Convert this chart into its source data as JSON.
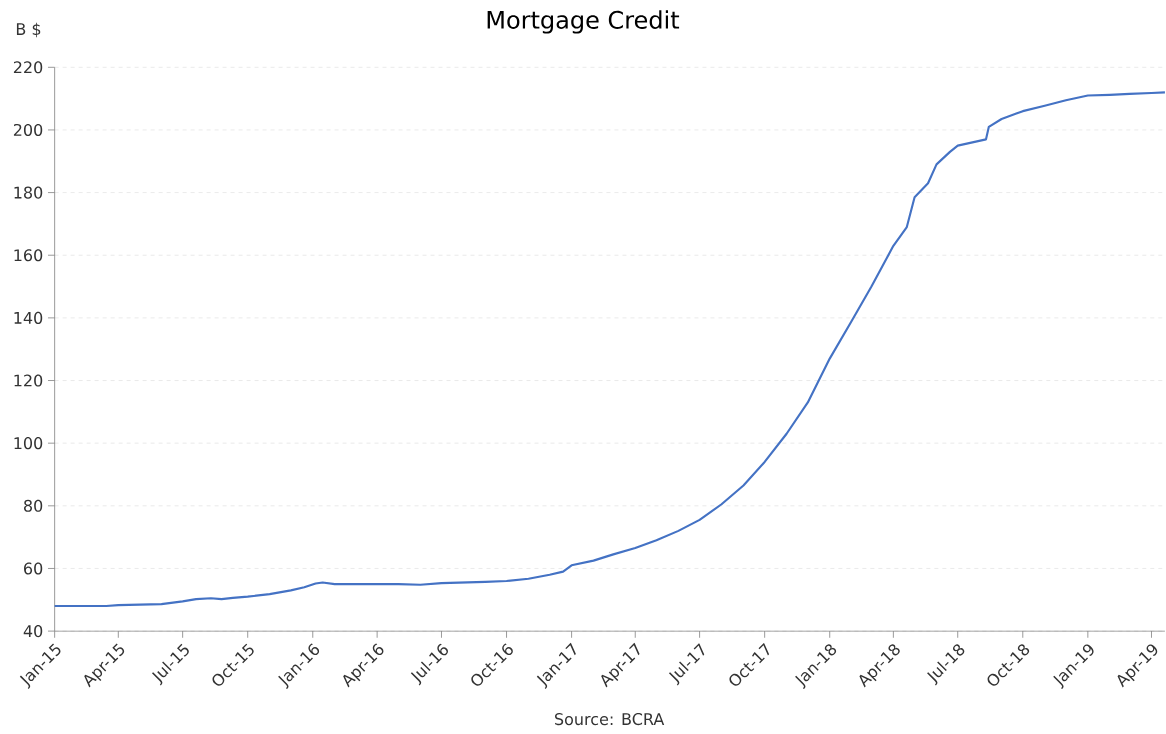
{
  "chart_data": {
    "type": "line",
    "title": "Mortgage Credit",
    "ylabel": "B $",
    "annotations": [
      "Source: BCRA"
    ],
    "x": [
      "2015-01-01",
      "2015-03-15",
      "2015-04-01",
      "2015-06-01",
      "2015-07-01",
      "2015-07-20",
      "2015-08-10",
      "2015-08-25",
      "2015-09-10",
      "2015-10-01",
      "2015-11-01",
      "2015-12-01",
      "2015-12-20",
      "2016-01-05",
      "2016-01-15",
      "2016-02-01",
      "2016-03-01",
      "2016-04-01",
      "2016-05-01",
      "2016-06-01",
      "2016-07-01",
      "2016-08-01",
      "2016-09-01",
      "2016-10-01",
      "2016-11-01",
      "2016-12-01",
      "2016-12-20",
      "2017-01-01",
      "2017-02-01",
      "2017-03-01",
      "2017-04-01",
      "2017-05-01",
      "2017-06-01",
      "2017-07-01",
      "2017-08-01",
      "2017-09-01",
      "2017-10-01",
      "2017-11-01",
      "2017-12-01",
      "2018-01-01",
      "2018-02-01",
      "2018-03-01",
      "2018-04-01",
      "2018-04-20",
      "2018-05-01",
      "2018-05-20",
      "2018-06-01",
      "2018-06-20",
      "2018-07-01",
      "2018-08-10",
      "2018-08-14",
      "2018-09-01",
      "2018-10-01",
      "2018-11-01",
      "2018-12-01",
      "2019-01-01",
      "2019-02-01",
      "2019-03-01",
      "2019-04-01",
      "2019-04-20"
    ],
    "series": [
      {
        "color": "#4472c4",
        "values": [
          48,
          48,
          48.3,
          48.6,
          49.5,
          50.2,
          50.5,
          50.2,
          50.6,
          51,
          51.8,
          53,
          54,
          55.2,
          55.5,
          55,
          55,
          55,
          55,
          54.8,
          55.3,
          55.5,
          55.7,
          56,
          56.7,
          58,
          59,
          61,
          62.5,
          64.5,
          66.5,
          69,
          72,
          75.5,
          80.5,
          86.5,
          94,
          103,
          113,
          127,
          139,
          150,
          163,
          169,
          178.5,
          183,
          189,
          193,
          195,
          197,
          201,
          203.5,
          206,
          207.7,
          209.5,
          211,
          211.2,
          211.5,
          211.8,
          212
        ]
      }
    ],
    "xlim": [
      "2015-01-01",
      "2019-04-20"
    ],
    "ylim": [
      40,
      220
    ],
    "yticks": [
      40,
      60,
      80,
      100,
      120,
      140,
      160,
      180,
      200,
      220
    ],
    "xticks": [
      {
        "value": "2015-01-01",
        "label": "Jan-15"
      },
      {
        "value": "2015-04-01",
        "label": "Apr-15"
      },
      {
        "value": "2015-07-01",
        "label": "Jul-15"
      },
      {
        "value": "2015-10-01",
        "label": "Oct-15"
      },
      {
        "value": "2016-01-01",
        "label": "Jan-16"
      },
      {
        "value": "2016-04-01",
        "label": "Apr-16"
      },
      {
        "value": "2016-07-01",
        "label": "Jul-16"
      },
      {
        "value": "2016-10-01",
        "label": "Oct-16"
      },
      {
        "value": "2017-01-01",
        "label": "Jan-17"
      },
      {
        "value": "2017-04-01",
        "label": "Apr-17"
      },
      {
        "value": "2017-07-01",
        "label": "Jul-17"
      },
      {
        "value": "2017-10-01",
        "label": "Oct-17"
      },
      {
        "value": "2018-01-01",
        "label": "Jan-18"
      },
      {
        "value": "2018-04-01",
        "label": "Apr-18"
      },
      {
        "value": "2018-07-01",
        "label": "Jul-18"
      },
      {
        "value": "2018-10-01",
        "label": "Oct-18"
      },
      {
        "value": "2019-01-01",
        "label": "Jan-19"
      },
      {
        "value": "2019-04-01",
        "label": "Apr-19"
      }
    ],
    "grid": "y",
    "legend": false,
    "marker": "none",
    "line_style": "solid"
  }
}
